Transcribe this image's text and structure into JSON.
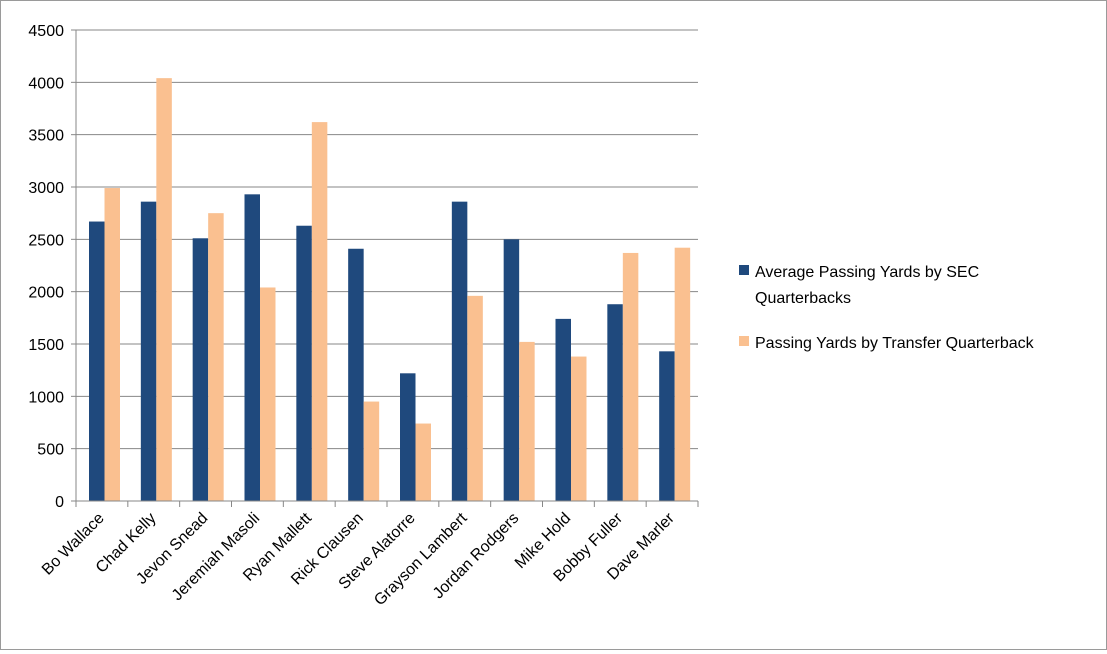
{
  "chart_data": {
    "type": "bar",
    "title": "",
    "xlabel": "",
    "ylabel": "",
    "ylim": [
      0,
      4500
    ],
    "yticks": [
      0,
      500,
      1000,
      1500,
      2000,
      2500,
      3000,
      3500,
      4000,
      4500
    ],
    "grid": true,
    "legend_position": "right",
    "categories": [
      "Bo Wallace",
      "Chad Kelly",
      "Jevon Snead",
      "Jeremiah Masoli",
      "Ryan Mallett",
      "Rick Clausen",
      "Steve Alatorre",
      "Grayson Lambert",
      "Jordan Rodgers",
      "Mike Hold",
      "Bobby Fuller",
      "Dave Marler"
    ],
    "series": [
      {
        "name_lines": [
          "Average Passing Yards by SEC",
          "Quarterbacks"
        ],
        "color": "#1f497d",
        "values": [
          2670,
          2860,
          2510,
          2930,
          2630,
          2410,
          1220,
          2860,
          2500,
          1740,
          1880,
          1430
        ]
      },
      {
        "name_lines": [
          "Passing Yards by Transfer Quarterback"
        ],
        "color": "#fac090",
        "values": [
          2990,
          4040,
          2750,
          2040,
          3620,
          950,
          740,
          1960,
          1520,
          1380,
          2370,
          2420
        ]
      }
    ]
  }
}
